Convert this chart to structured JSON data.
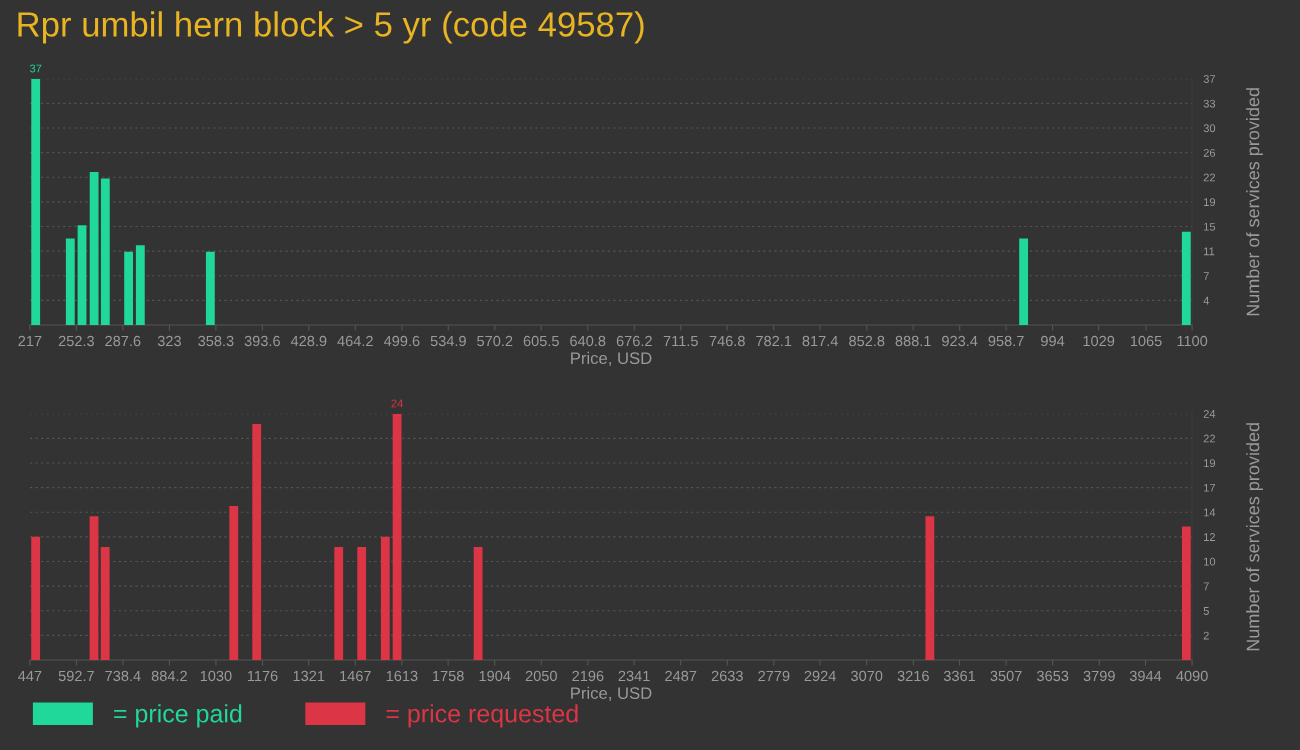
{
  "chart_data": [
    {
      "type": "bar",
      "title": "Rpr umbil hern block > 5 yr (code 49587)",
      "xlabel": "Price, USD",
      "ylabel": "Number of services provided",
      "x": [
        221.4,
        247.7,
        256.6,
        265.8,
        274.3,
        292.0,
        300.9,
        354.1,
        972.0,
        1095.6
      ],
      "series": [
        {
          "name": "= price paid",
          "color": "#20d89a",
          "values": [
            37,
            13,
            15,
            23,
            22,
            11,
            12,
            11,
            13,
            14
          ],
          "value_labels": [
            "37",
            null,
            null,
            null,
            null,
            null,
            null,
            null,
            null,
            null
          ]
        }
      ],
      "xlim": [
        217,
        1100
      ],
      "xticks": [
        217,
        252.3,
        287.6,
        323,
        358.3,
        393.6,
        428.9,
        464.2,
        499.6,
        534.9,
        570.2,
        605.5,
        640.8,
        676.2,
        711.5,
        746.8,
        782.1,
        817.4,
        852.8,
        888.1,
        923.4,
        958.7,
        994,
        1029,
        1065,
        1100
      ],
      "ylim": [
        0,
        37
      ],
      "yticks": [
        {
          "value": 3.7,
          "label": "4"
        },
        {
          "value": 7.4,
          "label": "7"
        },
        {
          "value": 11.1,
          "label": "11"
        },
        {
          "value": 14.8,
          "label": "15"
        },
        {
          "value": 18.5,
          "label": "19"
        },
        {
          "value": 22.2,
          "label": "22"
        },
        {
          "value": 25.9,
          "label": "26"
        },
        {
          "value": 29.6,
          "label": "30"
        },
        {
          "value": 33.3,
          "label": "33"
        },
        {
          "value": 37,
          "label": "37"
        }
      ],
      "grid": "y",
      "legend": "bottom left"
    },
    {
      "type": "bar",
      "xlabel": "Price, USD",
      "ylabel": "Number of services provided",
      "x": [
        465,
        648,
        683,
        1086,
        1158,
        1415,
        1487,
        1561,
        1598,
        1852,
        3268,
        4072
      ],
      "series": [
        {
          "name": "= price requested",
          "color": "#dc3545",
          "values": [
            12,
            14,
            11,
            15,
            23,
            11,
            11,
            12,
            24,
            11,
            14,
            13
          ],
          "value_labels": [
            null,
            null,
            null,
            null,
            null,
            null,
            null,
            null,
            "24",
            null,
            null,
            null
          ]
        }
      ],
      "xlim": [
        447,
        4090
      ],
      "xticks": [
        447,
        592.7,
        738.4,
        884.2,
        1030,
        1176,
        1321,
        1467,
        1613,
        1758,
        1904,
        2050,
        2196,
        2341,
        2487,
        2633,
        2779,
        2924,
        3070,
        3216,
        3361,
        3507,
        3653,
        3799,
        3944,
        4090
      ],
      "ylim": [
        0,
        24
      ],
      "yticks": [
        {
          "value": 2.4,
          "label": "2"
        },
        {
          "value": 4.8,
          "label": "5"
        },
        {
          "value": 7.2,
          "label": "7"
        },
        {
          "value": 9.6,
          "label": "10"
        },
        {
          "value": 12,
          "label": "12"
        },
        {
          "value": 14.4,
          "label": "14"
        },
        {
          "value": 16.8,
          "label": "17"
        },
        {
          "value": 19.2,
          "label": "19"
        },
        {
          "value": 21.6,
          "label": "22"
        },
        {
          "value": 24,
          "label": "24"
        }
      ],
      "grid": "y",
      "legend": "bottom left"
    }
  ]
}
